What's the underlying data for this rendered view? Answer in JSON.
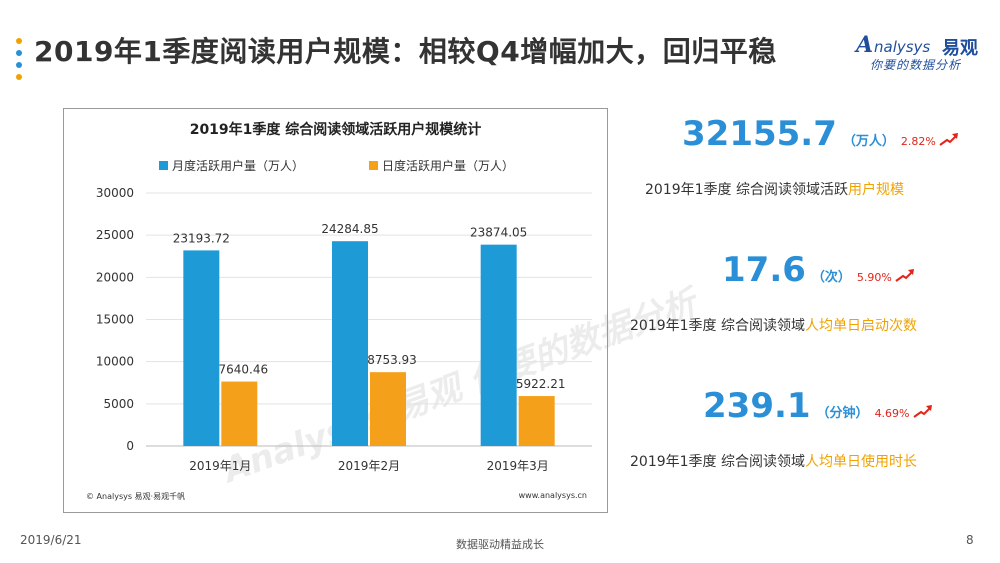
{
  "slide": {
    "title": "2019年1季度阅读用户规模：相较Q4增幅加大，回归平稳",
    "dot_colors": [
      "#f0a202",
      "#2a8fd6",
      "#2a8fd6",
      "#f0a202"
    ]
  },
  "logo": {
    "brand": "nalysys",
    "brand_initial": "A",
    "brand_cn": "易观",
    "slogan": "你要的数据分析"
  },
  "chart_data": {
    "type": "bar",
    "title": "2019年1季度 综合阅读领域活跃用户规模统计",
    "categories": [
      "2019年1月",
      "2019年2月",
      "2019年3月"
    ],
    "series": [
      {
        "name": "月度活跃用户量（万人）",
        "color": "#1e9ad6",
        "values": [
          23193.72,
          24284.85,
          23874.05
        ],
        "labels": [
          "23193.72",
          "24284.85",
          "23874.05"
        ]
      },
      {
        "name": "日度活跃用户量（万人）",
        "color": "#f5a01a",
        "values": [
          7640.46,
          8753.93,
          5922.21
        ],
        "labels": [
          "7640.46",
          "8753.93",
          "5922.21"
        ]
      }
    ],
    "ylim": [
      0,
      30000
    ],
    "yticks": [
      0,
      5000,
      10000,
      15000,
      20000,
      25000,
      30000
    ],
    "ytick_labels": [
      "0",
      "5000",
      "10000",
      "15000",
      "20000",
      "25000",
      "30000"
    ],
    "grid": true,
    "legend": "top",
    "watermark": "Analysys 易观 你要的数据分析",
    "source_left": "© Analysys 易观·易观千帆",
    "source_right": "www.analysys.cn"
  },
  "stats": [
    {
      "value": "32155.7",
      "unit": "（万人）",
      "change": "2.82%",
      "desc_plain": "2019年1季度 综合阅读领域活跃",
      "desc_highlight": "用户规模"
    },
    {
      "value": "17.6",
      "unit": "（次）",
      "change": "5.90%",
      "desc_plain": "2019年1季度 综合阅读领域",
      "desc_highlight": "人均单日启动次数"
    },
    {
      "value": "239.1",
      "unit": "（分钟）",
      "change": "4.69%",
      "desc_plain": "2019年1季度 综合阅读领域",
      "desc_highlight": "人均单日使用时长"
    }
  ],
  "footer": {
    "date": "2019/6/21",
    "slogan": "数据驱动精益成长",
    "page": "8"
  }
}
